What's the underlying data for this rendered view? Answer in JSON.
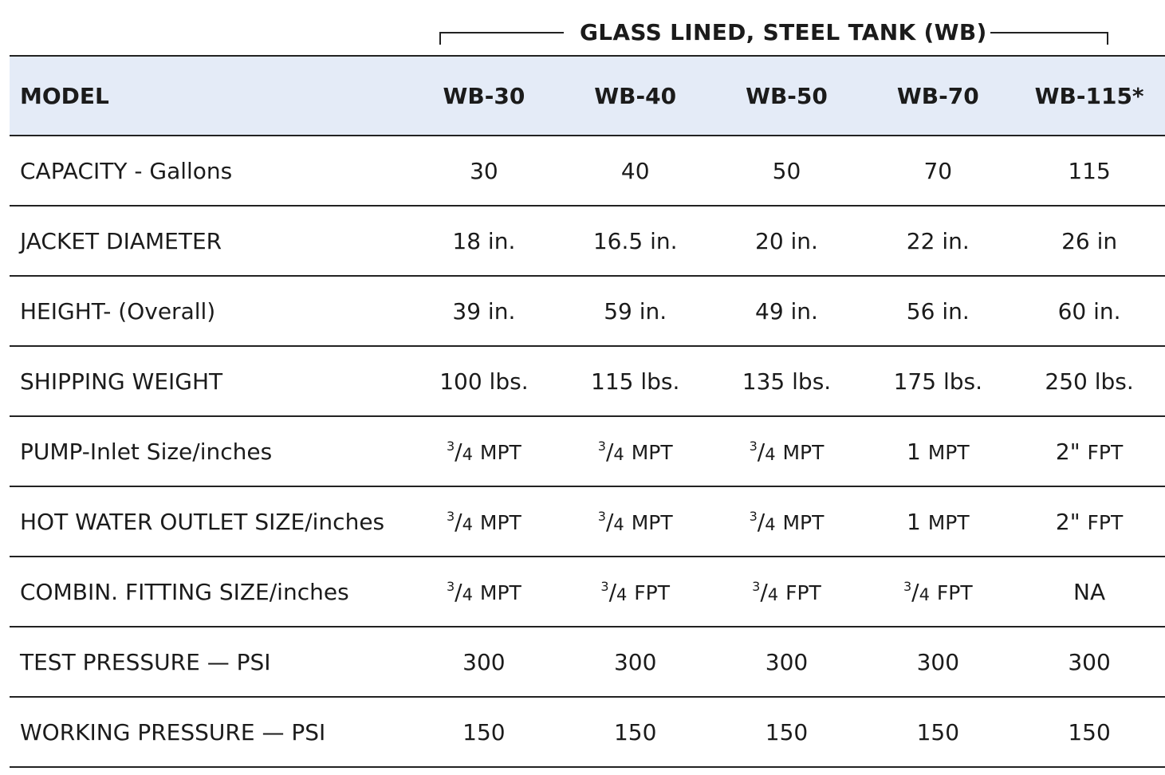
{
  "group_header": "GLASS LINED, STEEL TANK (WB)",
  "table": {
    "header": [
      "MODEL",
      "WB-30",
      "WB-40",
      "WB-50",
      "WB-70",
      "WB-115*"
    ],
    "rows": [
      {
        "label": "CAPACITY - Gallons",
        "cells": [
          "30",
          "40",
          "50",
          "70",
          "115"
        ]
      },
      {
        "label": "JACKET DIAMETER",
        "cells": [
          "18 in.",
          "16.5 in.",
          "20 in.",
          "22 in.",
          "26 in"
        ]
      },
      {
        "label": "HEIGHT- (Overall)",
        "cells": [
          "39 in.",
          "59 in.",
          "49 in.",
          "56 in.",
          "60 in."
        ]
      },
      {
        "label": "SHIPPING WEIGHT",
        "cells": [
          "100 lbs.",
          "115 lbs.",
          "135 lbs.",
          "175 lbs.",
          "250 lbs."
        ]
      },
      {
        "label": "PUMP-Inlet Size/inches",
        "cells": [
          {
            "num": "3",
            "den": "4",
            "unit": "MPT"
          },
          {
            "num": "3",
            "den": "4",
            "unit": "MPT"
          },
          {
            "num": "3",
            "den": "4",
            "unit": "MPT"
          },
          {
            "value": "1",
            "unit": "MPT"
          },
          {
            "value": "2\"",
            "unit": "FPT"
          }
        ]
      },
      {
        "label": "HOT WATER OUTLET SIZE/inches",
        "cells": [
          {
            "num": "3",
            "den": "4",
            "unit": "MPT"
          },
          {
            "num": "3",
            "den": "4",
            "unit": "MPT"
          },
          {
            "num": "3",
            "den": "4",
            "unit": "MPT"
          },
          {
            "value": "1",
            "unit": "MPT"
          },
          {
            "value": "2\"",
            "unit": "FPT"
          }
        ]
      },
      {
        "label": "COMBIN. FITTING SIZE/inches",
        "cells": [
          {
            "num": "3",
            "den": "4",
            "unit": "MPT"
          },
          {
            "num": "3",
            "den": "4",
            "unit": "FPT"
          },
          {
            "num": "3",
            "den": "4",
            "unit": "FPT"
          },
          {
            "num": "3",
            "den": "4",
            "unit": "FPT"
          },
          {
            "value": "NA",
            "unit": ""
          }
        ]
      },
      {
        "label": "TEST PRESSURE — PSI",
        "cells": [
          "300",
          "300",
          "300",
          "300",
          "300"
        ]
      },
      {
        "label": "WORKING PRESSURE — PSI",
        "cells": [
          "150",
          "150",
          "150",
          "150",
          "150"
        ]
      }
    ]
  }
}
